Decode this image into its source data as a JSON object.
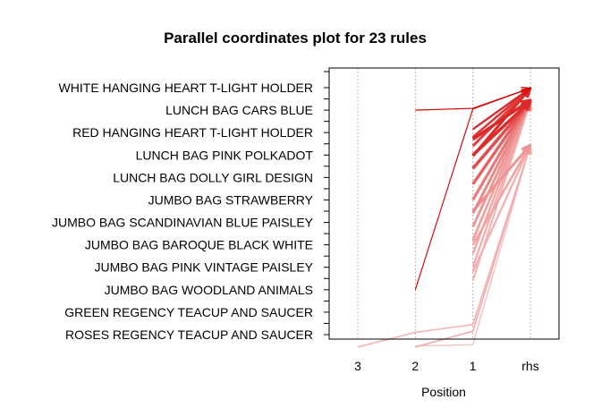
{
  "chart_data": {
    "type": "parallel-coordinates",
    "title": "Parallel coordinates plot for 23 rules",
    "xlabel": "Position",
    "positions": [
      "3",
      "2",
      "1",
      "rhs"
    ],
    "items": [
      "WHITE HANGING HEART T-LIGHT HOLDER",
      "LUNCH BAG CARS BLUE",
      "RED HANGING HEART T-LIGHT HOLDER",
      "LUNCH BAG PINK POLKADOT",
      "LUNCH BAG DOLLY GIRL DESIGN",
      "JUMBO BAG STRAWBERRY",
      "JUMBO BAG SCANDINAVIAN BLUE PAISLEY",
      "JUMBO  BAG BAROQUE BLACK WHITE",
      "JUMBO BAG PINK VINTAGE PAISLEY",
      "JUMBO BAG WOODLAND ANIMALS",
      "GREEN REGENCY TEACUP AND SAUCER",
      "ROSES REGENCY TEACUP AND SAUCER"
    ],
    "rules": [
      {
        "path": [
          null,
          1,
          0.92,
          0.02
        ],
        "shade": 1.0,
        "width": 1.2
      },
      {
        "path": [
          null,
          9,
          0.95,
          0.02
        ],
        "shade": 0.95,
        "width": 1.2
      },
      {
        "path": [
          null,
          null,
          1.85,
          0.02
        ],
        "shade": 0.85,
        "width": 2.2
      },
      {
        "path": [
          null,
          null,
          2.2,
          0.02
        ],
        "shade": 0.75,
        "width": 2.6
      },
      {
        "path": [
          null,
          null,
          2.6,
          0.02
        ],
        "shade": 0.7,
        "width": 3.0
      },
      {
        "path": [
          null,
          null,
          3.05,
          0.02
        ],
        "shade": 0.8,
        "width": 3.2
      },
      {
        "path": [
          null,
          null,
          2.3,
          0.55
        ],
        "shade": 0.82,
        "width": 3.4
      },
      {
        "path": [
          null,
          null,
          3.0,
          0.6
        ],
        "shade": 0.8,
        "width": 3.6
      },
      {
        "path": [
          null,
          null,
          3.6,
          0.6
        ],
        "shade": 0.65,
        "width": 3.6
      },
      {
        "path": [
          null,
          null,
          4.3,
          0.6
        ],
        "shade": 0.55,
        "width": 3.4
      },
      {
        "path": [
          null,
          null,
          5.0,
          0.6
        ],
        "shade": 0.45,
        "width": 3.2
      },
      {
        "path": [
          null,
          null,
          5.6,
          0.6
        ],
        "shade": 0.38,
        "width": 3.0
      },
      {
        "path": [
          null,
          null,
          6.2,
          0.6
        ],
        "shade": 0.33,
        "width": 2.8
      },
      {
        "path": [
          null,
          null,
          6.8,
          0.6
        ],
        "shade": 0.28,
        "width": 2.6
      },
      {
        "path": [
          null,
          null,
          7.4,
          0.6
        ],
        "shade": 0.25,
        "width": 2.4
      },
      {
        "path": [
          null,
          null,
          8.0,
          0.6
        ],
        "shade": 0.22,
        "width": 2.2
      },
      {
        "path": [
          null,
          null,
          8.6,
          0.6
        ],
        "shade": 0.2,
        "width": 2.0
      },
      {
        "path": [
          null,
          null,
          5.5,
          2.55
        ],
        "shade": 0.32,
        "width": 3.0
      },
      {
        "path": [
          null,
          null,
          7.0,
          2.55
        ],
        "shade": 0.25,
        "width": 2.6
      },
      {
        "path": [
          null,
          null,
          8.2,
          2.55
        ],
        "shade": 0.2,
        "width": 2.2
      },
      {
        "path": [
          11.55,
          10.9,
          10.55,
          2.55
        ],
        "shade": 0.18,
        "width": 1.6
      },
      {
        "path": [
          null,
          11.55,
          10.85,
          2.55
        ],
        "shade": 0.22,
        "width": 1.6
      },
      {
        "path": [
          null,
          11.5,
          11.45,
          2.55
        ],
        "shade": 0.12,
        "width": 1.4
      }
    ]
  }
}
